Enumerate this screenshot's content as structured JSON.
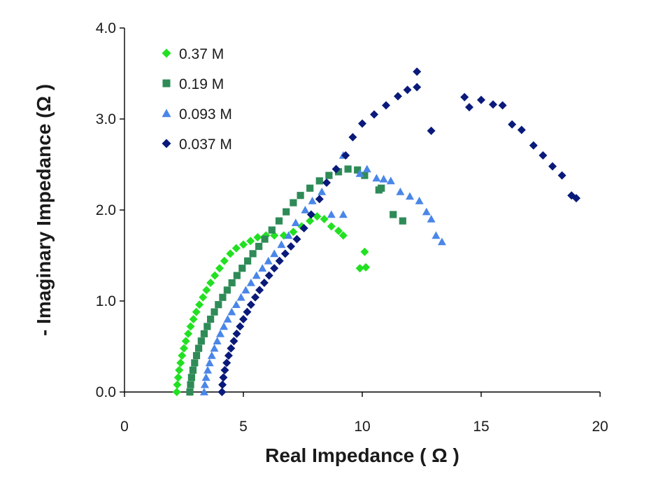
{
  "chart_data": {
    "type": "scatter",
    "title": "",
    "xlabel": "Real Impedance ( Ω )",
    "ylabel": "- Imaginary Impedance (Ω )",
    "xlim": [
      0,
      20
    ],
    "ylim": [
      0,
      4
    ],
    "x_ticks": [
      0,
      5,
      10,
      15,
      20
    ],
    "x_tick_labels": [
      "0",
      "5",
      "10",
      "15",
      "20"
    ],
    "y_ticks": [
      0,
      1,
      2,
      3,
      4
    ],
    "y_tick_labels": [
      "0.0",
      "1.0",
      "2.0",
      "3.0",
      "4.0"
    ],
    "grid": false,
    "legend_position": "top-left",
    "series": [
      {
        "name": "0.37 M",
        "marker": "diamond",
        "color": "#22e022",
        "points": [
          [
            2.2,
            0.0
          ],
          [
            2.22,
            0.08
          ],
          [
            2.26,
            0.16
          ],
          [
            2.3,
            0.24
          ],
          [
            2.36,
            0.32
          ],
          [
            2.42,
            0.4
          ],
          [
            2.5,
            0.48
          ],
          [
            2.58,
            0.56
          ],
          [
            2.68,
            0.64
          ],
          [
            2.78,
            0.72
          ],
          [
            2.9,
            0.8
          ],
          [
            3.02,
            0.88
          ],
          [
            3.15,
            0.96
          ],
          [
            3.3,
            1.04
          ],
          [
            3.45,
            1.12
          ],
          [
            3.62,
            1.2
          ],
          [
            3.8,
            1.28
          ],
          [
            4.0,
            1.36
          ],
          [
            4.2,
            1.44
          ],
          [
            4.45,
            1.52
          ],
          [
            4.7,
            1.58
          ],
          [
            5.0,
            1.62
          ],
          [
            5.3,
            1.66
          ],
          [
            5.6,
            1.7
          ],
          [
            5.95,
            1.72
          ],
          [
            6.3,
            1.72
          ],
          [
            6.7,
            1.72
          ],
          [
            7.1,
            1.76
          ],
          [
            7.45,
            1.82
          ],
          [
            7.8,
            1.88
          ],
          [
            8.1,
            1.93
          ],
          [
            8.4,
            1.9
          ],
          [
            8.7,
            1.82
          ],
          [
            9.0,
            1.77
          ],
          [
            9.2,
            1.72
          ],
          [
            10.1,
            1.54
          ],
          [
            9.9,
            1.36
          ],
          [
            10.15,
            1.37
          ]
        ]
      },
      {
        "name": "0.19 M",
        "marker": "square",
        "color": "#2e8b57",
        "points": [
          [
            2.75,
            0.0
          ],
          [
            2.78,
            0.08
          ],
          [
            2.82,
            0.16
          ],
          [
            2.88,
            0.24
          ],
          [
            2.95,
            0.32
          ],
          [
            3.03,
            0.4
          ],
          [
            3.12,
            0.48
          ],
          [
            3.23,
            0.56
          ],
          [
            3.35,
            0.64
          ],
          [
            3.48,
            0.72
          ],
          [
            3.62,
            0.8
          ],
          [
            3.78,
            0.88
          ],
          [
            3.95,
            0.96
          ],
          [
            4.13,
            1.04
          ],
          [
            4.32,
            1.12
          ],
          [
            4.52,
            1.2
          ],
          [
            4.73,
            1.28
          ],
          [
            4.95,
            1.36
          ],
          [
            5.18,
            1.44
          ],
          [
            5.4,
            1.52
          ],
          [
            5.65,
            1.6
          ],
          [
            5.9,
            1.68
          ],
          [
            6.2,
            1.78
          ],
          [
            6.5,
            1.88
          ],
          [
            6.8,
            1.98
          ],
          [
            7.1,
            2.08
          ],
          [
            7.4,
            2.16
          ],
          [
            7.8,
            2.24
          ],
          [
            8.2,
            2.32
          ],
          [
            8.6,
            2.38
          ],
          [
            9.0,
            2.42
          ],
          [
            9.4,
            2.45
          ],
          [
            9.8,
            2.44
          ],
          [
            10.1,
            2.38
          ],
          [
            10.7,
            2.22
          ],
          [
            10.8,
            2.24
          ],
          [
            11.3,
            1.95
          ],
          [
            11.7,
            1.88
          ]
        ]
      },
      {
        "name": "0.093 M",
        "marker": "triangle",
        "color": "#4a86e8",
        "points": [
          [
            3.35,
            0.0
          ],
          [
            3.38,
            0.08
          ],
          [
            3.43,
            0.16
          ],
          [
            3.5,
            0.24
          ],
          [
            3.58,
            0.32
          ],
          [
            3.67,
            0.4
          ],
          [
            3.78,
            0.48
          ],
          [
            3.9,
            0.56
          ],
          [
            4.03,
            0.64
          ],
          [
            4.18,
            0.72
          ],
          [
            4.34,
            0.8
          ],
          [
            4.51,
            0.88
          ],
          [
            4.7,
            0.96
          ],
          [
            4.9,
            1.04
          ],
          [
            5.1,
            1.12
          ],
          [
            5.32,
            1.2
          ],
          [
            5.55,
            1.28
          ],
          [
            5.8,
            1.36
          ],
          [
            6.05,
            1.44
          ],
          [
            6.3,
            1.52
          ],
          [
            6.6,
            1.62
          ],
          [
            6.9,
            1.72
          ],
          [
            7.2,
            1.86
          ],
          [
            7.6,
            2.0
          ],
          [
            7.9,
            2.1
          ],
          [
            8.3,
            2.2
          ],
          [
            8.7,
            1.95
          ],
          [
            9.2,
            1.95
          ],
          [
            9.2,
            2.6
          ],
          [
            9.9,
            2.4
          ],
          [
            10.2,
            2.45
          ],
          [
            10.6,
            2.35
          ],
          [
            10.9,
            2.34
          ],
          [
            11.2,
            2.32
          ],
          [
            11.6,
            2.2
          ],
          [
            12.0,
            2.15
          ],
          [
            12.4,
            2.1
          ],
          [
            12.7,
            1.98
          ],
          [
            12.9,
            1.9
          ],
          [
            13.1,
            1.72
          ],
          [
            13.35,
            1.65
          ]
        ]
      },
      {
        "name": "0.037 M",
        "marker": "diamond",
        "color": "#0a1a7a",
        "points": [
          [
            4.1,
            0.0
          ],
          [
            4.12,
            0.08
          ],
          [
            4.16,
            0.16
          ],
          [
            4.22,
            0.24
          ],
          [
            4.3,
            0.32
          ],
          [
            4.38,
            0.4
          ],
          [
            4.48,
            0.48
          ],
          [
            4.6,
            0.56
          ],
          [
            4.72,
            0.64
          ],
          [
            4.86,
            0.72
          ],
          [
            5.0,
            0.8
          ],
          [
            5.16,
            0.88
          ],
          [
            5.32,
            0.96
          ],
          [
            5.5,
            1.04
          ],
          [
            5.68,
            1.12
          ],
          [
            5.88,
            1.2
          ],
          [
            6.08,
            1.28
          ],
          [
            6.3,
            1.36
          ],
          [
            6.52,
            1.44
          ],
          [
            6.76,
            1.52
          ],
          [
            7.0,
            1.6
          ],
          [
            7.25,
            1.68
          ],
          [
            7.55,
            1.8
          ],
          [
            7.85,
            1.95
          ],
          [
            8.2,
            2.12
          ],
          [
            8.5,
            2.3
          ],
          [
            8.9,
            2.45
          ],
          [
            9.3,
            2.6
          ],
          [
            9.6,
            2.8
          ],
          [
            10.0,
            2.95
          ],
          [
            10.5,
            3.05
          ],
          [
            11.0,
            3.15
          ],
          [
            11.5,
            3.25
          ],
          [
            11.9,
            3.32
          ],
          [
            12.3,
            3.35
          ],
          [
            12.3,
            3.52
          ],
          [
            12.9,
            2.87
          ],
          [
            14.3,
            3.24
          ],
          [
            14.5,
            3.13
          ],
          [
            15.0,
            3.21
          ],
          [
            15.5,
            3.16
          ],
          [
            15.9,
            3.15
          ],
          [
            16.3,
            2.94
          ],
          [
            16.7,
            2.88
          ],
          [
            17.2,
            2.71
          ],
          [
            17.6,
            2.6
          ],
          [
            18.0,
            2.48
          ],
          [
            18.4,
            2.38
          ],
          [
            18.8,
            2.16
          ],
          [
            19.0,
            2.13
          ]
        ]
      }
    ]
  }
}
